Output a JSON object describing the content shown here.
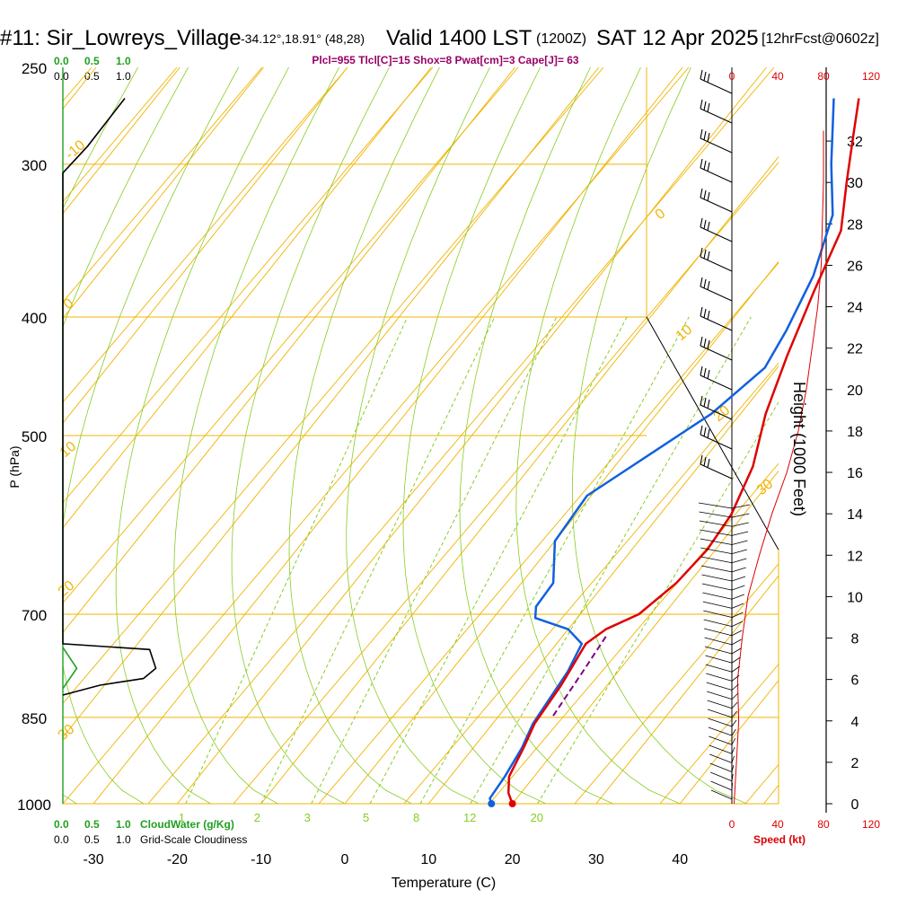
{
  "header": {
    "station": "#11: Sir_Lowreys_Village",
    "coords": "-34.12°,18.91° (48,28)",
    "valid": "Valid 1400 LST",
    "utc": "(1200Z)",
    "date": "SAT 12 Apr 2025",
    "fcst": "[12hrFcst@0602z]",
    "params": "Plcl=955 Tlcl[C]=15 Shox=8 Pwat[cm]=3 Cape[J]= 63"
  },
  "cloud_water_scale": {
    "ticks": [
      "0.0",
      "0.5",
      "1.0"
    ],
    "label": "CloudWater (g/Kg)"
  },
  "cloudiness_scale": {
    "ticks": [
      "0.0",
      "0.5",
      "1.0"
    ],
    "label": "Grid-Scale Cloudiness"
  },
  "speed_scale": {
    "ticks_inner": [
      "0",
      "40",
      "80"
    ],
    "ticks_outer": [
      "120"
    ],
    "label": "Speed (kt)"
  },
  "colors": {
    "isobar": "#f0b400",
    "dry_adiabat": "#f0b400",
    "mixing_ratio": "#88cc22",
    "temperature": "#e00000",
    "dewpoint": "#1060e0",
    "parcel": "#800080",
    "cloud_water": "#20a020",
    "header_params": "#990066",
    "speed": "#dd0000"
  },
  "chart_data": {
    "type": "line",
    "title": "#11: Sir_Lowreys_Village",
    "xlabel": "Temperature (C)",
    "ylabel": "P (hPa)",
    "y2label": "Height (1000 Feet)",
    "yscale": "log",
    "x_ticks": [
      -30,
      -20,
      -10,
      0,
      10,
      20,
      30,
      40
    ],
    "y_ticks": [
      250,
      300,
      400,
      500,
      700,
      850,
      1000
    ],
    "height_ticks": [
      0,
      2,
      4,
      6,
      8,
      10,
      12,
      14,
      16,
      18,
      20,
      22,
      24,
      26,
      28,
      30,
      32
    ],
    "isobars": [
      300,
      400,
      500,
      700,
      850,
      1000
    ],
    "dry_adiabat_labels": [
      "-10",
      "0",
      "10",
      "20",
      "30",
      "0",
      "10",
      "20",
      "30",
      "20",
      "30"
    ],
    "mixing_ratio_labels": [
      "1",
      "2",
      "3",
      "5",
      "8",
      "12",
      "20"
    ],
    "series": [
      {
        "name": "Temperature",
        "points": [
          [
            20.0,
            1000
          ],
          [
            18.5,
            980
          ],
          [
            17.0,
            950
          ],
          [
            16.0,
            900
          ],
          [
            15.0,
            860
          ],
          [
            14.5,
            800
          ],
          [
            13.5,
            740
          ],
          [
            14.5,
            720
          ],
          [
            17.0,
            700
          ],
          [
            18.5,
            660
          ],
          [
            19.0,
            620
          ],
          [
            18.5,
            580
          ],
          [
            16.5,
            530
          ],
          [
            13.0,
            480
          ],
          [
            10.0,
            430
          ],
          [
            7.0,
            380
          ],
          [
            4.5,
            340
          ],
          [
            0.5,
            310
          ],
          [
            -3.0,
            285
          ],
          [
            -6.0,
            265
          ]
        ]
      },
      {
        "name": "Dewpoint",
        "points": [
          [
            17.5,
            1000
          ],
          [
            16.8,
            990
          ],
          [
            16.5,
            950
          ],
          [
            15.8,
            900
          ],
          [
            14.8,
            860
          ],
          [
            14.5,
            830
          ],
          [
            14.0,
            780
          ],
          [
            13.0,
            740
          ],
          [
            10.0,
            720
          ],
          [
            5.0,
            705
          ],
          [
            4.0,
            690
          ],
          [
            3.8,
            660
          ],
          [
            0.0,
            610
          ],
          [
            -0.5,
            560
          ],
          [
            2.0,
            530
          ],
          [
            6.5,
            480
          ],
          [
            8.5,
            440
          ],
          [
            7.5,
            410
          ],
          [
            5.5,
            370
          ],
          [
            2.0,
            330
          ],
          [
            -3.0,
            300
          ],
          [
            -9.0,
            265
          ]
        ]
      },
      {
        "name": "Parcel",
        "points": [
          [
            15.2,
            730
          ],
          [
            15.8,
            780
          ],
          [
            16.2,
            820
          ],
          [
            16.5,
            850
          ]
        ]
      }
    ],
    "grid_scale_cloudiness": [
      [
        0.5,
        265
      ],
      [
        0.2,
        290
      ],
      [
        0.0,
        305
      ],
      [
        0.0,
        740
      ],
      [
        0.7,
        748
      ],
      [
        0.75,
        775
      ],
      [
        0.65,
        790
      ],
      [
        0.3,
        800
      ],
      [
        0.0,
        815
      ]
    ],
    "cloud_water": [
      [
        0.0,
        745
      ],
      [
        0.25,
        775
      ],
      [
        0.0,
        805
      ]
    ],
    "wind_speed_profile": [
      [
        2,
        0
      ],
      [
        3,
        1
      ],
      [
        4,
        2
      ],
      [
        6,
        4
      ],
      [
        5,
        6
      ],
      [
        9,
        8
      ],
      [
        14,
        10
      ],
      [
        24,
        12
      ],
      [
        35,
        14
      ],
      [
        48,
        16
      ],
      [
        58,
        18
      ],
      [
        65,
        20
      ],
      [
        70,
        22
      ],
      [
        75,
        24
      ],
      [
        78,
        26
      ],
      [
        79,
        28
      ],
      [
        80,
        30
      ],
      [
        80,
        32.5
      ]
    ]
  }
}
